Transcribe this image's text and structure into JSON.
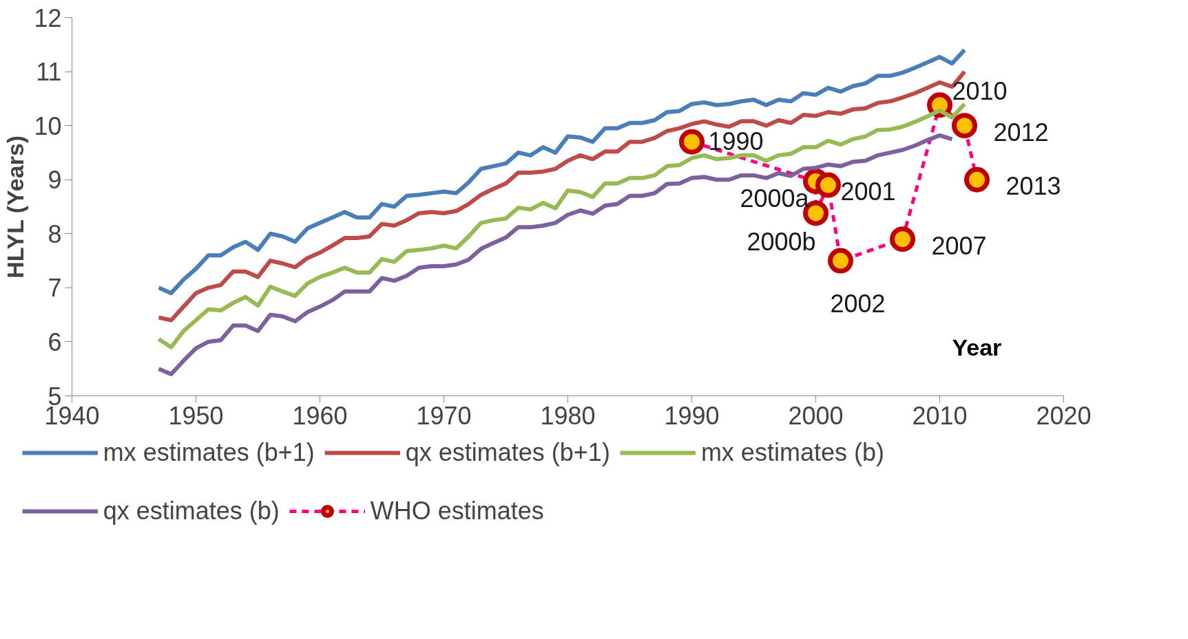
{
  "chart_data": {
    "type": "line",
    "xlabel": "Year",
    "ylabel": "HLYL (Years)",
    "xlim": [
      1940,
      2020
    ],
    "xticks": [
      1940,
      1950,
      1960,
      1970,
      1980,
      1990,
      2000,
      2010,
      2020
    ],
    "ylim": [
      5,
      12
    ],
    "yticks": [
      5,
      6,
      7,
      8,
      9,
      10,
      11,
      12
    ],
    "grid": false,
    "legend": "bottom",
    "line_style": "solid",
    "marker": "none",
    "x": [
      1947,
      1948,
      1949,
      1950,
      1951,
      1952,
      1953,
      1954,
      1955,
      1956,
      1957,
      1958,
      1959,
      1960,
      1961,
      1962,
      1963,
      1964,
      1965,
      1966,
      1967,
      1968,
      1969,
      1970,
      1971,
      1972,
      1973,
      1974,
      1975,
      1976,
      1977,
      1978,
      1979,
      1980,
      1981,
      1982,
      1983,
      1984,
      1985,
      1986,
      1987,
      1988,
      1989,
      1990,
      1991,
      1992,
      1993,
      1994,
      1995,
      1996,
      1997,
      1998,
      1999,
      2000,
      2001,
      2002,
      2003,
      2004,
      2005,
      2006,
      2007,
      2008,
      2009,
      2010,
      2011,
      2012
    ],
    "series": [
      {
        "name": "mx estimates (b+1)",
        "color": "#4a7ebb",
        "values": [
          7.0,
          6.9,
          7.15,
          7.35,
          7.6,
          7.6,
          7.75,
          7.85,
          7.7,
          8.0,
          7.95,
          7.85,
          8.1,
          8.2,
          8.3,
          8.4,
          8.3,
          8.3,
          8.55,
          8.5,
          8.7,
          8.72,
          8.75,
          8.78,
          8.75,
          8.95,
          9.2,
          9.25,
          9.3,
          9.5,
          9.45,
          9.6,
          9.5,
          9.8,
          9.78,
          9.7,
          9.95,
          9.95,
          10.05,
          10.05,
          10.1,
          10.25,
          10.27,
          10.4,
          10.43,
          10.38,
          10.4,
          10.45,
          10.48,
          10.38,
          10.48,
          10.45,
          10.6,
          10.57,
          10.7,
          10.63,
          10.73,
          10.78,
          10.92,
          10.92,
          10.98,
          11.07,
          11.17,
          11.27,
          11.15,
          11.4
        ]
      },
      {
        "name": "qx estimates (b+1)",
        "color": "#be4b48",
        "values": [
          6.45,
          6.4,
          6.65,
          6.9,
          7.0,
          7.05,
          7.3,
          7.3,
          7.2,
          7.5,
          7.45,
          7.38,
          7.55,
          7.65,
          7.78,
          7.92,
          7.92,
          7.95,
          8.18,
          8.15,
          8.25,
          8.38,
          8.4,
          8.38,
          8.42,
          8.55,
          8.72,
          8.83,
          8.93,
          9.13,
          9.13,
          9.15,
          9.2,
          9.35,
          9.45,
          9.38,
          9.52,
          9.52,
          9.7,
          9.7,
          9.77,
          9.9,
          9.95,
          10.03,
          10.08,
          10.02,
          9.98,
          10.08,
          10.08,
          10.0,
          10.1,
          10.05,
          10.2,
          10.18,
          10.25,
          10.22,
          10.3,
          10.32,
          10.42,
          10.45,
          10.52,
          10.6,
          10.7,
          10.8,
          10.72,
          11.0
        ]
      },
      {
        "name": "mx estimates (b)",
        "color": "#98b954",
        "values": [
          6.05,
          5.9,
          6.2,
          6.4,
          6.6,
          6.58,
          6.72,
          6.83,
          6.67,
          7.02,
          6.93,
          6.85,
          7.08,
          7.2,
          7.28,
          7.37,
          7.28,
          7.28,
          7.53,
          7.48,
          7.68,
          7.7,
          7.73,
          7.78,
          7.73,
          7.95,
          8.2,
          8.25,
          8.28,
          8.48,
          8.45,
          8.57,
          8.47,
          8.8,
          8.77,
          8.68,
          8.93,
          8.93,
          9.03,
          9.03,
          9.08,
          9.25,
          9.27,
          9.4,
          9.45,
          9.38,
          9.4,
          9.45,
          9.45,
          9.35,
          9.45,
          9.48,
          9.6,
          9.6,
          9.72,
          9.65,
          9.75,
          9.8,
          9.92,
          9.93,
          9.98,
          10.07,
          10.17,
          10.28,
          10.15,
          10.4
        ]
      },
      {
        "name": "qx estimates (b)",
        "color": "#7d60a0",
        "values": [
          5.5,
          5.4,
          5.65,
          5.88,
          6.0,
          6.03,
          6.3,
          6.3,
          6.2,
          6.5,
          6.47,
          6.38,
          6.55,
          6.65,
          6.77,
          6.93,
          6.93,
          6.93,
          7.18,
          7.13,
          7.22,
          7.37,
          7.4,
          7.4,
          7.43,
          7.52,
          7.72,
          7.83,
          7.93,
          8.12,
          8.12,
          8.15,
          8.2,
          8.35,
          8.43,
          8.37,
          8.52,
          8.55,
          8.7,
          8.7,
          8.75,
          8.92,
          8.93,
          9.03,
          9.05,
          9.0,
          9.0,
          9.08,
          9.08,
          9.03,
          9.12,
          9.07,
          9.2,
          9.22,
          9.28,
          9.25,
          9.33,
          9.35,
          9.45,
          9.5,
          9.55,
          9.63,
          9.73,
          9.82,
          9.75,
          null
        ]
      },
      {
        "name": "WHO estimates",
        "color": "#ff0080",
        "marker": "circle",
        "line_style": "dashed",
        "x": [
          1990,
          2000,
          2000,
          2001,
          2002,
          2007,
          2010,
          2012,
          2013
        ],
        "values": [
          9.7,
          8.97,
          8.38,
          8.9,
          7.5,
          7.9,
          10.38,
          10.0,
          9.0
        ]
      }
    ],
    "annotations": [
      {
        "text": "1990",
        "x": 1990,
        "y": 9.7
      },
      {
        "text": "2000a",
        "x": 2000,
        "y": 8.97
      },
      {
        "text": "2000b",
        "x": 2000,
        "y": 8.38
      },
      {
        "text": "2001",
        "x": 2001,
        "y": 8.9
      },
      {
        "text": "2002",
        "x": 2002,
        "y": 7.5
      },
      {
        "text": "2007",
        "x": 2007,
        "y": 7.9
      },
      {
        "text": "2010",
        "x": 2010,
        "y": 10.38
      },
      {
        "text": "2012",
        "x": 2012,
        "y": 10.0
      },
      {
        "text": "2013",
        "x": 2013,
        "y": 9.0
      }
    ]
  }
}
